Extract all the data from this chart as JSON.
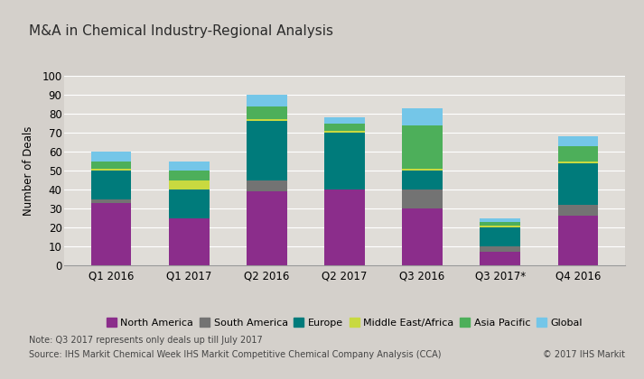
{
  "title": "M&A in Chemical Industry-Regional Analysis",
  "ylabel": "Number of Deals",
  "categories": [
    "Q1 2016",
    "Q1 2017",
    "Q2 2016",
    "Q2 2017",
    "Q3 2016",
    "Q3 2017*",
    "Q4 2016"
  ],
  "series": {
    "North America": [
      33,
      25,
      39,
      40,
      30,
      7,
      26
    ],
    "South America": [
      2,
      0,
      6,
      0,
      10,
      3,
      6
    ],
    "Europe": [
      15,
      15,
      31,
      30,
      10,
      10,
      22
    ],
    "Middle East/Africa": [
      1,
      5,
      1,
      1,
      1,
      1,
      1
    ],
    "Asia Pacific": [
      4,
      5,
      7,
      4,
      23,
      2,
      8
    ],
    "Global": [
      5,
      5,
      6,
      3,
      9,
      2,
      5
    ]
  },
  "colors": {
    "North America": "#8B2D8B",
    "South America": "#737373",
    "Europe": "#007B7B",
    "Middle East/Africa": "#C8D940",
    "Asia Pacific": "#4DAF5A",
    "Global": "#74C6E8"
  },
  "ylim": [
    0,
    100
  ],
  "yticks": [
    0,
    10,
    20,
    30,
    40,
    50,
    60,
    70,
    80,
    90,
    100
  ],
  "fig_bg_color": "#D4D0CB",
  "title_bar_color": "#C8C4BC",
  "plot_bg_color": "#E0DDD8",
  "note": "Note: Q3 2017 represents only deals up till July 2017",
  "source": "Source: IHS Markit Chemical Week IHS Markit Competitive Chemical Company Analysis (CCA)",
  "copyright": "© 2017 IHS Markit",
  "title_fontsize": 11,
  "axis_fontsize": 8.5,
  "legend_fontsize": 8,
  "note_fontsize": 7
}
